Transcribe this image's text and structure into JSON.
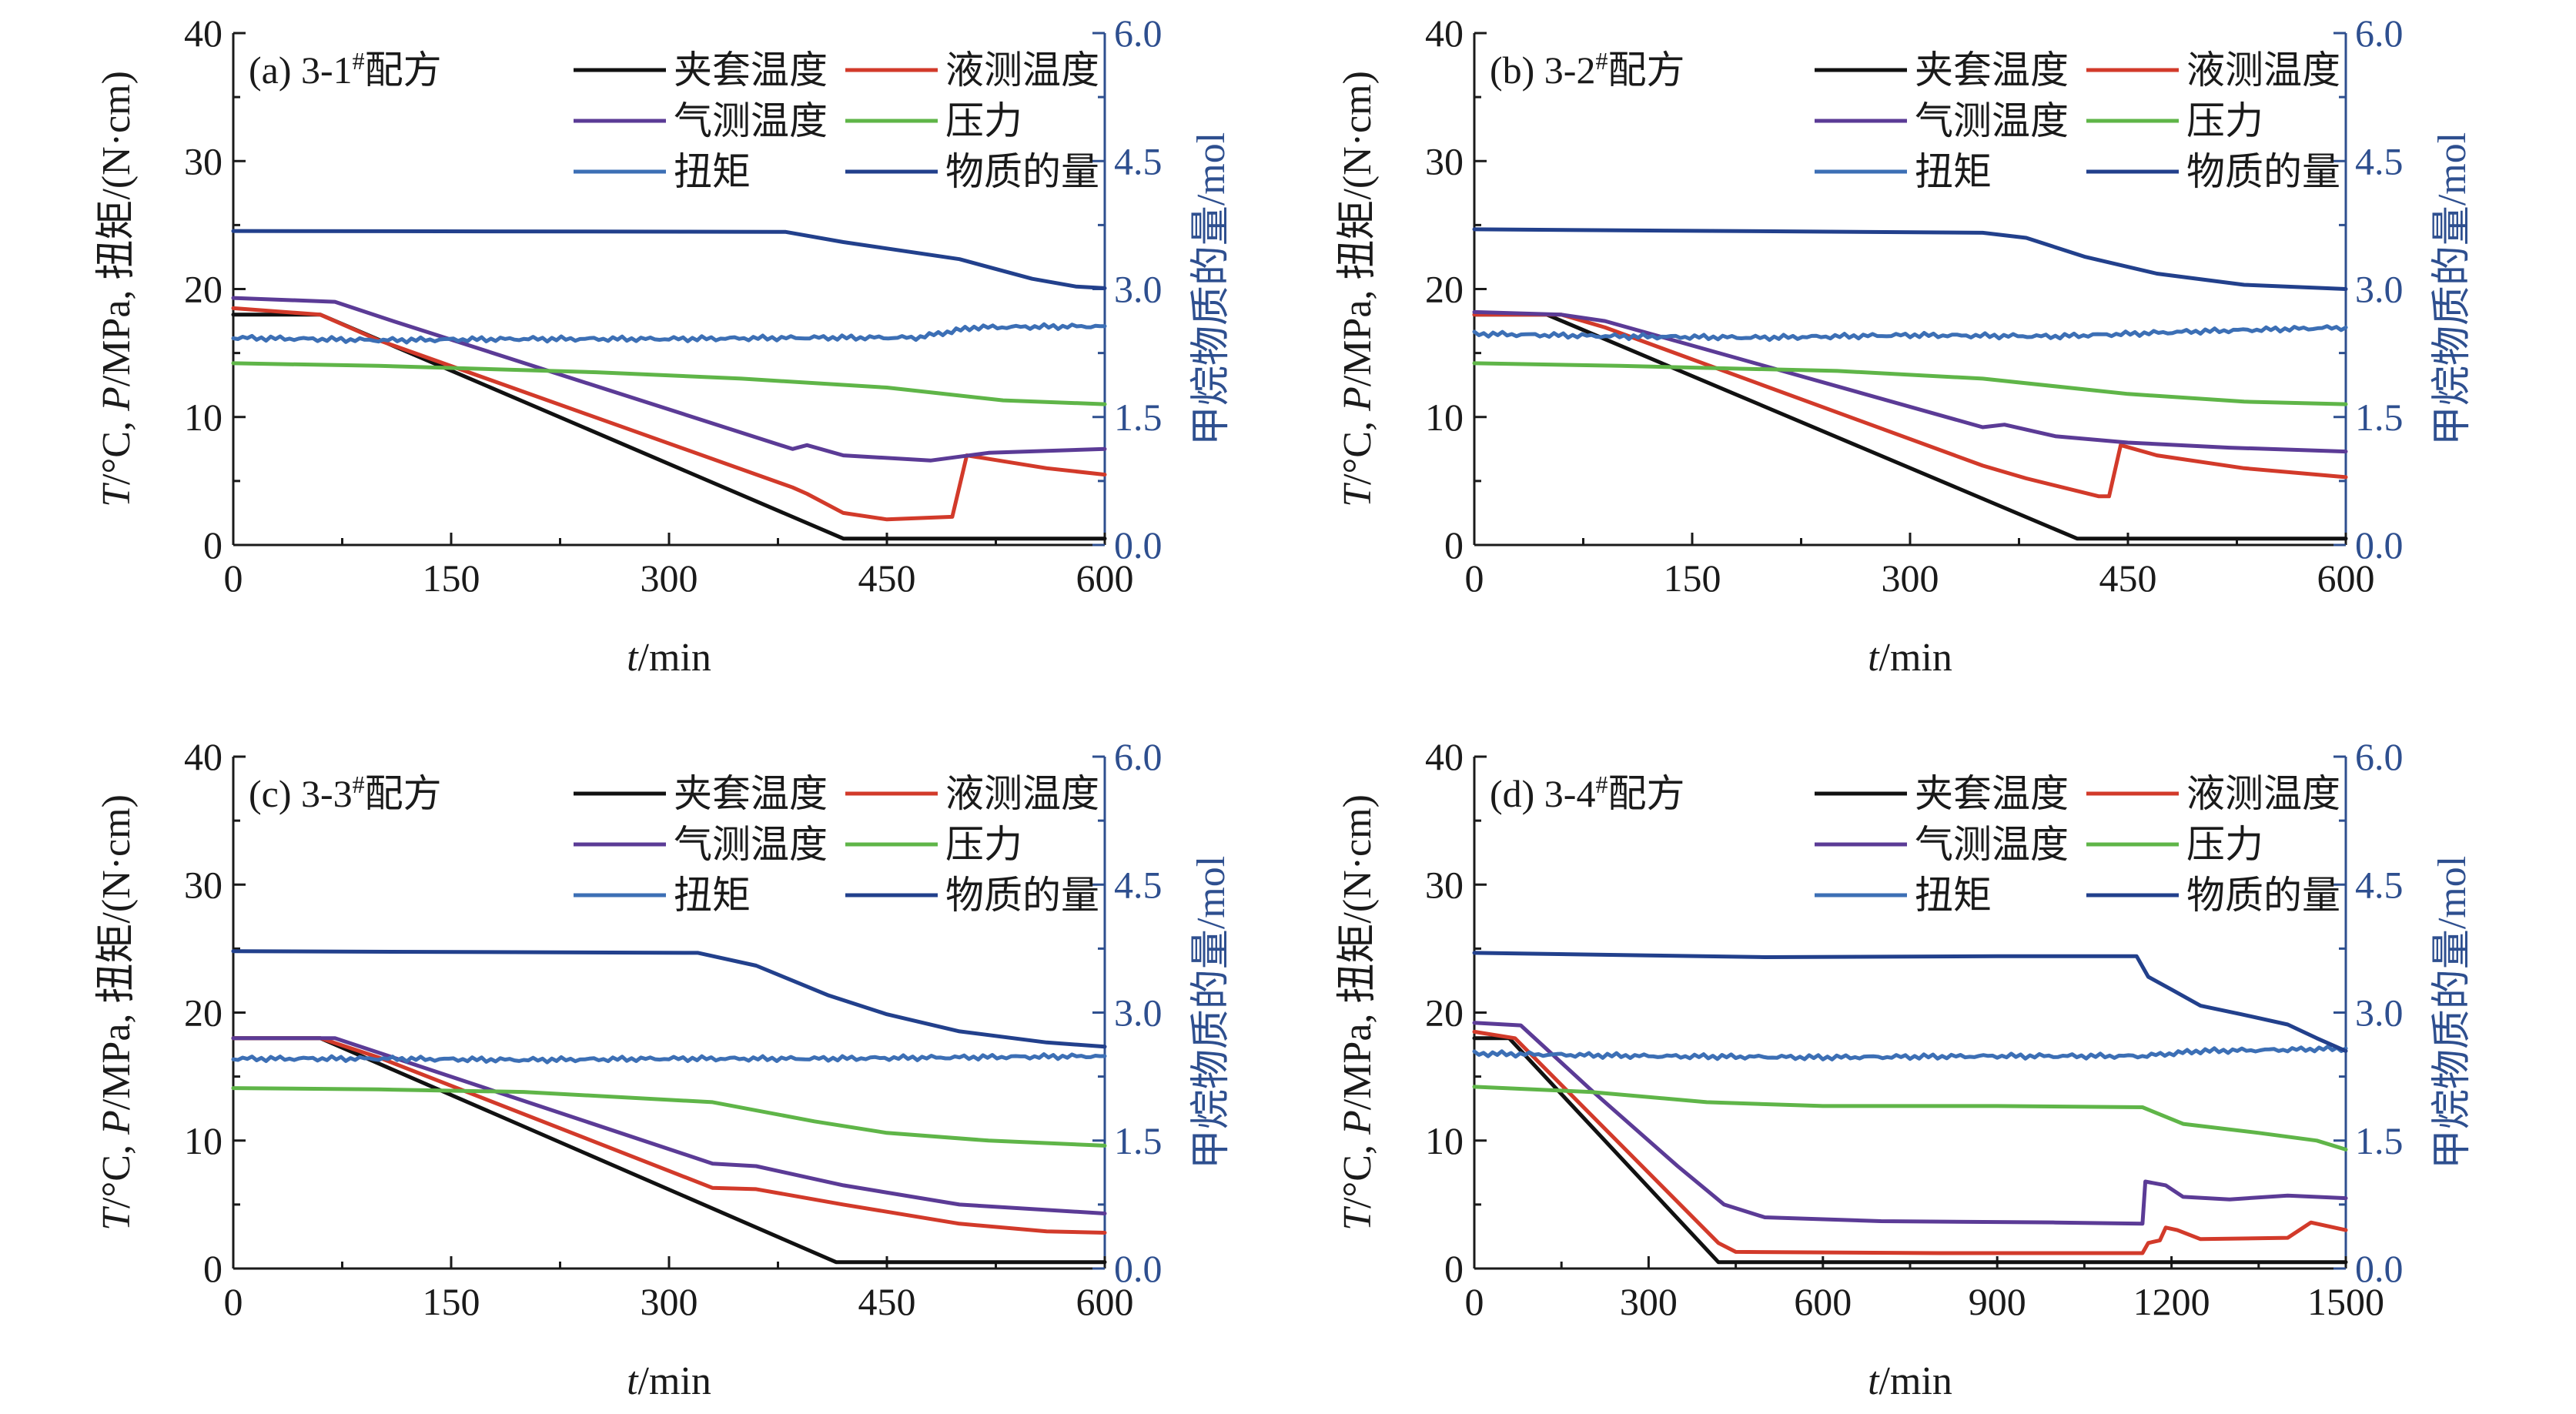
{
  "colors": {
    "jacket": "#111111",
    "liquid": "#d23a2a",
    "gas": "#5b3b96",
    "pressure": "#5fb548",
    "torque": "#3c6fb5",
    "moles": "#22408c",
    "right_axis": "#2e4f8f"
  },
  "chart_data": [
    {
      "type": "line",
      "panel_label": "(a) 3-1",
      "panel_sup": "#",
      "panel_suffix": "配方",
      "xlabel": "t/min",
      "ylabel": "T/°C, P/MPa, 扭矩/(N·cm)",
      "y2label": "甲烷物质的量/mol",
      "xlim": [
        0,
        600
      ],
      "xticks": [
        0,
        150,
        300,
        450,
        600
      ],
      "ylim": [
        0,
        40
      ],
      "yticks": [
        0,
        10,
        20,
        30,
        40
      ],
      "y2lim": [
        0,
        6
      ],
      "y2ticks": [
        "0.0",
        "1.5",
        "3.0",
        "4.5",
        "6.0"
      ],
      "series": [
        {
          "name": "夹套温度",
          "key": "jacket",
          "axis": "left",
          "points": [
            [
              0,
              18
            ],
            [
              60,
              18
            ],
            [
              420,
              0.5
            ],
            [
              600,
              0.5
            ]
          ]
        },
        {
          "name": "液测温度",
          "key": "liquid",
          "axis": "left",
          "points": [
            [
              0,
              18.5
            ],
            [
              60,
              18
            ],
            [
              100,
              16
            ],
            [
              385,
              4.5
            ],
            [
              395,
              4
            ],
            [
              420,
              2.5
            ],
            [
              450,
              2
            ],
            [
              495,
              2.2
            ],
            [
              505,
              7
            ],
            [
              560,
              6
            ],
            [
              600,
              5.5
            ]
          ]
        },
        {
          "name": "气测温度",
          "key": "gas",
          "axis": "left",
          "points": [
            [
              0,
              19.3
            ],
            [
              70,
              19
            ],
            [
              110,
              17.5
            ],
            [
              385,
              7.5
            ],
            [
              395,
              7.8
            ],
            [
              420,
              7
            ],
            [
              480,
              6.6
            ],
            [
              520,
              7.2
            ],
            [
              600,
              7.5
            ]
          ]
        },
        {
          "name": "压力",
          "key": "pressure",
          "axis": "left",
          "points": [
            [
              0,
              14.2
            ],
            [
              100,
              14.0
            ],
            [
              250,
              13.5
            ],
            [
              350,
              13
            ],
            [
              450,
              12.3
            ],
            [
              530,
              11.3
            ],
            [
              600,
              11
            ]
          ]
        },
        {
          "name": "扭矩",
          "key": "torque",
          "axis": "left",
          "wavy": true,
          "points": [
            [
              0,
              16.2
            ],
            [
              100,
              16
            ],
            [
              200,
              16.1
            ],
            [
              300,
              16.1
            ],
            [
              400,
              16.2
            ],
            [
              470,
              16.2
            ],
            [
              510,
              17
            ],
            [
              600,
              17.1
            ]
          ]
        },
        {
          "name": "物质的量",
          "key": "moles",
          "axis": "right",
          "points": [
            [
              0,
              3.68
            ],
            [
              380,
              3.67
            ],
            [
              420,
              3.55
            ],
            [
              500,
              3.35
            ],
            [
              550,
              3.12
            ],
            [
              580,
              3.03
            ],
            [
              600,
              3.01
            ]
          ]
        }
      ]
    },
    {
      "type": "line",
      "panel_label": "(b) 3-2",
      "panel_sup": "#",
      "panel_suffix": "配方",
      "xlabel": "t/min",
      "ylabel": "T/°C, P/MPa, 扭矩/(N·cm)",
      "y2label": "甲烷物质的量/mol",
      "xlim": [
        0,
        600
      ],
      "xticks": [
        0,
        150,
        300,
        450,
        600
      ],
      "ylim": [
        0,
        40
      ],
      "yticks": [
        0,
        10,
        20,
        30,
        40
      ],
      "y2lim": [
        0,
        6
      ],
      "y2ticks": [
        "0.0",
        "1.5",
        "3.0",
        "4.5",
        "6.0"
      ],
      "series": [
        {
          "name": "夹套温度",
          "key": "jacket",
          "axis": "left",
          "points": [
            [
              0,
              18
            ],
            [
              50,
              18
            ],
            [
              415,
              0.5
            ],
            [
              600,
              0.5
            ]
          ]
        },
        {
          "name": "液测温度",
          "key": "liquid",
          "axis": "left",
          "points": [
            [
              0,
              18
            ],
            [
              60,
              18
            ],
            [
              90,
              17
            ],
            [
              350,
              6.2
            ],
            [
              380,
              5.2
            ],
            [
              430,
              3.8
            ],
            [
              437,
              3.8
            ],
            [
              445,
              7.8
            ],
            [
              470,
              7
            ],
            [
              530,
              6
            ],
            [
              600,
              5.3
            ]
          ]
        },
        {
          "name": "气测温度",
          "key": "gas",
          "axis": "left",
          "points": [
            [
              0,
              18.2
            ],
            [
              60,
              18
            ],
            [
              90,
              17.5
            ],
            [
              350,
              9.2
            ],
            [
              365,
              9.4
            ],
            [
              400,
              8.5
            ],
            [
              450,
              8
            ],
            [
              520,
              7.6
            ],
            [
              600,
              7.3
            ]
          ]
        },
        {
          "name": "压力",
          "key": "pressure",
          "axis": "left",
          "points": [
            [
              0,
              14.2
            ],
            [
              100,
              14
            ],
            [
              250,
              13.6
            ],
            [
              350,
              13
            ],
            [
              450,
              11.8
            ],
            [
              530,
              11.2
            ],
            [
              600,
              11
            ]
          ]
        },
        {
          "name": "扭矩",
          "key": "torque",
          "axis": "left",
          "wavy": true,
          "points": [
            [
              0,
              16.5
            ],
            [
              100,
              16.3
            ],
            [
              200,
              16.2
            ],
            [
              300,
              16.4
            ],
            [
              400,
              16.3
            ],
            [
              500,
              16.7
            ],
            [
              600,
              17
            ]
          ]
        },
        {
          "name": "物质的量",
          "key": "moles",
          "axis": "right",
          "points": [
            [
              0,
              3.7
            ],
            [
              350,
              3.66
            ],
            [
              380,
              3.6
            ],
            [
              420,
              3.38
            ],
            [
              470,
              3.18
            ],
            [
              530,
              3.05
            ],
            [
              600,
              3.0
            ]
          ]
        }
      ]
    },
    {
      "type": "line",
      "panel_label": "(c) 3-3",
      "panel_sup": "#",
      "panel_suffix": "配方",
      "xlabel": "t/min",
      "ylabel": "T/°C, P/MPa, 扭矩/(N·cm)",
      "y2label": "甲烷物质的量/mol",
      "xlim": [
        0,
        600
      ],
      "xticks": [
        0,
        150,
        300,
        450,
        600
      ],
      "ylim": [
        0,
        40
      ],
      "yticks": [
        0,
        10,
        20,
        30,
        40
      ],
      "y2lim": [
        0,
        6
      ],
      "y2ticks": [
        "0.0",
        "1.5",
        "3.0",
        "4.5",
        "6.0"
      ],
      "series": [
        {
          "name": "夹套温度",
          "key": "jacket",
          "axis": "left",
          "points": [
            [
              0,
              18
            ],
            [
              60,
              18
            ],
            [
              415,
              0.5
            ],
            [
              600,
              0.5
            ]
          ]
        },
        {
          "name": "液测温度",
          "key": "liquid",
          "axis": "left",
          "points": [
            [
              0,
              18
            ],
            [
              60,
              18
            ],
            [
              100,
              16.5
            ],
            [
              330,
              6.3
            ],
            [
              360,
              6.2
            ],
            [
              420,
              5
            ],
            [
              500,
              3.5
            ],
            [
              560,
              2.9
            ],
            [
              600,
              2.8
            ]
          ]
        },
        {
          "name": "气测温度",
          "key": "gas",
          "axis": "left",
          "points": [
            [
              0,
              18
            ],
            [
              70,
              18
            ],
            [
              110,
              16.5
            ],
            [
              330,
              8.2
            ],
            [
              360,
              8
            ],
            [
              420,
              6.5
            ],
            [
              500,
              5
            ],
            [
              600,
              4.3
            ]
          ]
        },
        {
          "name": "压力",
          "key": "pressure",
          "axis": "left",
          "points": [
            [
              0,
              14.1
            ],
            [
              100,
              14
            ],
            [
              200,
              13.8
            ],
            [
              330,
              13
            ],
            [
              400,
              11.5
            ],
            [
              450,
              10.6
            ],
            [
              520,
              10
            ],
            [
              600,
              9.6
            ]
          ]
        },
        {
          "name": "扭矩",
          "key": "torque",
          "axis": "left",
          "wavy": true,
          "points": [
            [
              0,
              16.4
            ],
            [
              100,
              16.4
            ],
            [
              200,
              16.3
            ],
            [
              300,
              16.4
            ],
            [
              400,
              16.4
            ],
            [
              500,
              16.5
            ],
            [
              600,
              16.6
            ]
          ]
        },
        {
          "name": "物质的量",
          "key": "moles",
          "axis": "right",
          "points": [
            [
              0,
              3.72
            ],
            [
              320,
              3.7
            ],
            [
              360,
              3.55
            ],
            [
              410,
              3.2
            ],
            [
              450,
              2.98
            ],
            [
              500,
              2.78
            ],
            [
              560,
              2.65
            ],
            [
              600,
              2.6
            ]
          ]
        }
      ]
    },
    {
      "type": "line",
      "panel_label": "(d) 3-4",
      "panel_sup": "#",
      "panel_suffix": "配方",
      "xlabel": "t/min",
      "ylabel": "T/°C, P/MPa, 扭矩/(N·cm)",
      "y2label": "甲烷物质的量/mol",
      "xlim": [
        0,
        1500
      ],
      "xticks": [
        0,
        300,
        600,
        900,
        1200,
        1500
      ],
      "ylim": [
        0,
        40
      ],
      "yticks": [
        0,
        10,
        20,
        30,
        40
      ],
      "y2lim": [
        0,
        6
      ],
      "y2ticks": [
        "0.0",
        "1.5",
        "3.0",
        "4.5",
        "6.0"
      ],
      "series": [
        {
          "name": "夹套温度",
          "key": "jacket",
          "axis": "left",
          "points": [
            [
              0,
              18
            ],
            [
              60,
              18
            ],
            [
              420,
              0.5
            ],
            [
              1500,
              0.5
            ]
          ]
        },
        {
          "name": "液测温度",
          "key": "liquid",
          "axis": "left",
          "points": [
            [
              0,
              18.5
            ],
            [
              70,
              18
            ],
            [
              420,
              2
            ],
            [
              450,
              1.3
            ],
            [
              800,
              1.2
            ],
            [
              1150,
              1.2
            ],
            [
              1160,
              2
            ],
            [
              1180,
              2.2
            ],
            [
              1190,
              3.2
            ],
            [
              1210,
              3
            ],
            [
              1250,
              2.3
            ],
            [
              1400,
              2.4
            ],
            [
              1440,
              3.6
            ],
            [
              1500,
              3
            ]
          ]
        },
        {
          "name": "气测温度",
          "key": "gas",
          "axis": "left",
          "points": [
            [
              0,
              19.2
            ],
            [
              80,
              19
            ],
            [
              200,
              14
            ],
            [
              350,
              8
            ],
            [
              430,
              5
            ],
            [
              500,
              4
            ],
            [
              700,
              3.7
            ],
            [
              1000,
              3.6
            ],
            [
              1150,
              3.5
            ],
            [
              1155,
              6.8
            ],
            [
              1190,
              6.5
            ],
            [
              1220,
              5.6
            ],
            [
              1300,
              5.4
            ],
            [
              1400,
              5.7
            ],
            [
              1500,
              5.5
            ]
          ]
        },
        {
          "name": "压力",
          "key": "pressure",
          "axis": "left",
          "points": [
            [
              0,
              14.2
            ],
            [
              200,
              13.8
            ],
            [
              400,
              13
            ],
            [
              600,
              12.7
            ],
            [
              900,
              12.7
            ],
            [
              1150,
              12.6
            ],
            [
              1220,
              11.3
            ],
            [
              1350,
              10.6
            ],
            [
              1450,
              10
            ],
            [
              1500,
              9.3
            ]
          ]
        },
        {
          "name": "扭矩",
          "key": "torque",
          "axis": "left",
          "wavy": true,
          "points": [
            [
              0,
              16.8
            ],
            [
              300,
              16.6
            ],
            [
              600,
              16.5
            ],
            [
              900,
              16.6
            ],
            [
              1150,
              16.6
            ],
            [
              1250,
              17
            ],
            [
              1400,
              17.1
            ],
            [
              1500,
              17.2
            ]
          ]
        },
        {
          "name": "物质的量",
          "key": "moles",
          "axis": "right",
          "points": [
            [
              0,
              3.7
            ],
            [
              300,
              3.67
            ],
            [
              500,
              3.65
            ],
            [
              900,
              3.66
            ],
            [
              1140,
              3.66
            ],
            [
              1160,
              3.42
            ],
            [
              1200,
              3.27
            ],
            [
              1250,
              3.08
            ],
            [
              1320,
              2.98
            ],
            [
              1400,
              2.86
            ],
            [
              1450,
              2.7
            ],
            [
              1500,
              2.55
            ]
          ]
        }
      ]
    }
  ]
}
